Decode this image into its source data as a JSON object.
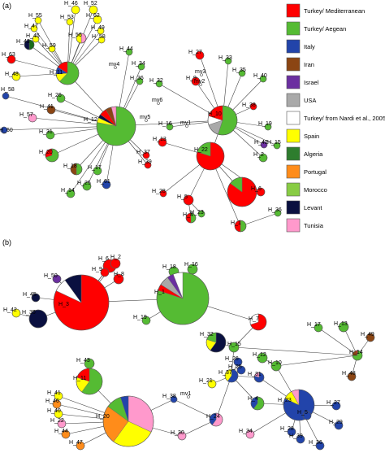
{
  "panels": [
    {
      "label": "(a)",
      "nodes": [
        {
          "id": "H_46",
          "color": "#FFFF00"
        },
        {
          "id": "H_52",
          "color": "#FFFF00"
        },
        {
          "id": "H_55",
          "color": "#FFFF00"
        },
        {
          "id": "H_53",
          "color": "#FFFF00"
        },
        {
          "id": "H_62",
          "color": "#FFFF00"
        },
        {
          "id": "H_47",
          "color": "#FFFF00"
        },
        {
          "id": "H_45",
          "color": "#FFFF00"
        },
        {
          "id": "H_56",
          "color": "#FF99CC"
        },
        {
          "id": "H_49",
          "color": "#FFFF00"
        },
        {
          "id": "H_43",
          "color": "#1A6B1A"
        },
        {
          "id": "H_59",
          "color": "#FFFF00"
        },
        {
          "id": "H_58",
          "color": "#FFFF00"
        },
        {
          "id": "H_63",
          "color": "#FF0000"
        },
        {
          "id": "H_48",
          "color": "#FFFF00"
        },
        {
          "id": "H_11",
          "color": "#55BB33"
        },
        {
          "id": "H_44",
          "color": "#55BB33"
        },
        {
          "id": "H_34",
          "color": "#55BB33"
        },
        {
          "id": "H_36",
          "color": "#55BB33"
        },
        {
          "id": "H_32",
          "color": "#55BB33"
        },
        {
          "id": "H_58b",
          "color": "#2244AA"
        },
        {
          "id": "H_26",
          "color": "#55BB33"
        },
        {
          "id": "H_41",
          "color": "#8B4513"
        },
        {
          "id": "H_57",
          "color": "#FF99CC"
        },
        {
          "id": "H_60",
          "color": "#2244AA"
        },
        {
          "id": "H_12",
          "color": "#55BB33"
        },
        {
          "id": "H_31",
          "color": "#55BB33"
        },
        {
          "id": "H_20",
          "color": "#55BB33"
        },
        {
          "id": "H_18",
          "color": "#55BB33"
        },
        {
          "id": "H_17",
          "color": "#55BB33"
        },
        {
          "id": "H_14",
          "color": "#55BB33"
        },
        {
          "id": "H_25",
          "color": "#55BB33"
        },
        {
          "id": "H_61",
          "color": "#2244AA"
        },
        {
          "id": "H_37",
          "color": "#FF0000"
        },
        {
          "id": "H_39",
          "color": "#FF0000"
        },
        {
          "id": "H_27",
          "color": "#FF0000"
        },
        {
          "id": "H_9",
          "color": "#FF0000"
        },
        {
          "id": "H_33",
          "color": "#55BB33"
        },
        {
          "id": "H_35",
          "color": "#55BB33"
        },
        {
          "id": "H_40",
          "color": "#55BB33"
        },
        {
          "id": "H_10",
          "color": "#55BB33"
        },
        {
          "id": "H_16",
          "color": "#55BB33"
        },
        {
          "id": "H_38",
          "color": "#FF0000"
        },
        {
          "id": "H_19",
          "color": "#55BB33"
        },
        {
          "id": "H_42",
          "color": "#6B2FA0"
        },
        {
          "id": "H_15",
          "color": "#55BB33"
        },
        {
          "id": "H_2",
          "color": "#55BB33"
        },
        {
          "id": "H_13",
          "color": "#FF0000"
        },
        {
          "id": "H_22",
          "color": "#FF0000"
        },
        {
          "id": "H_28",
          "color": "#FF0000"
        },
        {
          "id": "H_5",
          "color": "#FF0000"
        },
        {
          "id": "H_6",
          "color": "#FF0000"
        },
        {
          "id": "H_23",
          "color": "#55BB33"
        },
        {
          "id": "H_4",
          "color": "#FF0000"
        },
        {
          "id": "H_1",
          "color": "#FF0000"
        },
        {
          "id": "H_36b",
          "color": "#55BB33"
        }
      ]
    },
    {
      "label": "(b)",
      "nodes": [
        {
          "id": "H_6",
          "color": "#FF0000"
        },
        {
          "id": "H_2",
          "color": "#FF0000"
        },
        {
          "id": "H_9",
          "color": "#FF0000"
        },
        {
          "id": "H_8",
          "color": "#FF0000"
        },
        {
          "id": "H_50",
          "color": "#6B2FA0"
        },
        {
          "id": "H_45",
          "color": "#0A1040"
        },
        {
          "id": "H_42",
          "color": "#FFFF00"
        },
        {
          "id": "H_35",
          "color": "#0A1040"
        },
        {
          "id": "H_3",
          "color": "#FF0000"
        },
        {
          "id": "H_18",
          "color": "#55BB33"
        },
        {
          "id": "H_16",
          "color": "#55BB33"
        },
        {
          "id": "H_1",
          "color": "#55BB33"
        },
        {
          "id": "H_19",
          "color": "#55BB33"
        },
        {
          "id": "H_7",
          "color": "#FF0000"
        },
        {
          "id": "H_32",
          "color": "#0A1040"
        },
        {
          "id": "H_15",
          "color": "#55BB33"
        },
        {
          "id": "H_17",
          "color": "#55BB33"
        },
        {
          "id": "H_13",
          "color": "#55BB33"
        },
        {
          "id": "H_49",
          "color": "#8B4513"
        },
        {
          "id": "H_14",
          "color": "#55BB33"
        },
        {
          "id": "H_48",
          "color": "#8B4513"
        },
        {
          "id": "H_12",
          "color": "#55BB33"
        },
        {
          "id": "H_10",
          "color": "#55BB33"
        },
        {
          "id": "H_26",
          "color": "#2244AA"
        },
        {
          "id": "H_25",
          "color": "#2244AA"
        },
        {
          "id": "H_37",
          "color": "#2244AA"
        },
        {
          "id": "H_31",
          "color": "#2244AA"
        },
        {
          "id": "H_21",
          "color": "#FFFF00"
        },
        {
          "id": "H_4",
          "color": "#55BB33"
        },
        {
          "id": "H_43",
          "color": "#55BB33"
        },
        {
          "id": "H_11",
          "color": "#55BB33"
        },
        {
          "id": "H_41",
          "color": "#FFFF00"
        },
        {
          "id": "H_46",
          "color": "#FF8C1A"
        },
        {
          "id": "H_40",
          "color": "#FFFF00"
        },
        {
          "id": "H_22",
          "color": "#FF99CC"
        },
        {
          "id": "H_44",
          "color": "#FF8C1A"
        },
        {
          "id": "H_47",
          "color": "#FF8C1A"
        },
        {
          "id": "H_20",
          "color": "#FF99CC"
        },
        {
          "id": "H_38",
          "color": "#2244AA"
        },
        {
          "id": "H_30",
          "color": "#FF99CC"
        },
        {
          "id": "H_24",
          "color": "#FF99CC"
        },
        {
          "id": "H_23",
          "color": "#2244AA"
        },
        {
          "id": "H_27",
          "color": "#2244AA"
        },
        {
          "id": "H_28",
          "color": "#2244AA"
        },
        {
          "id": "H_34",
          "color": "#FF99CC"
        },
        {
          "id": "H_29",
          "color": "#2244AA"
        },
        {
          "id": "H_39",
          "color": "#2244AA"
        },
        {
          "id": "H_36",
          "color": "#2244AA"
        },
        {
          "id": "H_5",
          "color": "#2244AA"
        }
      ]
    }
  ],
  "median_vectors": [
    "mv4",
    "mv3",
    "mv2",
    "mv6",
    "mv5",
    "mv1"
  ],
  "legend": [
    {
      "label": "Turkey/ Mediterranean",
      "color": "#FF0000"
    },
    {
      "label": "Turkey/ Aegean",
      "color": "#55BB33"
    },
    {
      "label": "Italy",
      "color": "#2244AA"
    },
    {
      "label": "Iran",
      "color": "#8B4513"
    },
    {
      "label": "Israel",
      "color": "#6B2FA0"
    },
    {
      "label": "USA",
      "color": "#A9A9A9"
    },
    {
      "label": "Turkey/ from Nardi et al., 2005",
      "color": "#FFFFFF"
    },
    {
      "label": "Spain",
      "color": "#FFFF00"
    },
    {
      "label": "Algeria",
      "color": "#2E7D2E"
    },
    {
      "label": "Portugal",
      "color": "#FF8C1A"
    },
    {
      "label": "Morocco",
      "color": "#88CC44"
    },
    {
      "label": "Levant",
      "color": "#0A1040"
    },
    {
      "label": "Tunisia",
      "color": "#FF99CC"
    }
  ]
}
